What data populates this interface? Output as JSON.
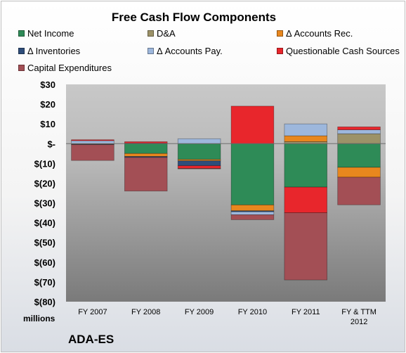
{
  "chart_data": {
    "type": "bar",
    "stacked": true,
    "title": "Free Cash Flow Components",
    "categories": [
      "FY 2007",
      "FY 2008",
      "FY 2009",
      "FY 2010",
      "FY 2011",
      "FY & TTM 2012"
    ],
    "y_tick_labels": [
      "$30",
      "$20",
      "$10",
      "$-",
      "$(10)",
      "$(20)",
      "$(30)",
      "$(40)",
      "$(50)",
      "$(60)",
      "$(70)",
      "$(80)"
    ],
    "ylim": [
      -80,
      30
    ],
    "units_label": "millions",
    "legend_position": "top",
    "grid": false,
    "series": [
      {
        "name": "Net Income",
        "color": "#2e8b57",
        "values": [
          0,
          -5,
          -8,
          -31,
          -22,
          -12
        ]
      },
      {
        "name": "D&A",
        "color": "#9c9268",
        "values": [
          0,
          0,
          0,
          0,
          1,
          5
        ]
      },
      {
        "name": "Δ Accounts Rec.",
        "color": "#e8871e",
        "values": [
          -0.3,
          -1.5,
          -0.7,
          -3,
          3,
          -5
        ]
      },
      {
        "name": "Δ Inventories",
        "color": "#2e4d7a",
        "values": [
          -0.2,
          -0.5,
          -2.5,
          -0.5,
          0,
          0
        ]
      },
      {
        "name": "Δ Accounts Pay.",
        "color": "#9db7dc",
        "values": [
          1.5,
          0.3,
          2.5,
          -1.5,
          6,
          2
        ]
      },
      {
        "name": "Questionable Cash Sources",
        "color": "#e8262c",
        "values": [
          0.5,
          0.7,
          -1.3,
          19,
          -13,
          1.5
        ]
      },
      {
        "name": "Capital Expenditures",
        "color": "#a34f55",
        "values": [
          -8,
          -17,
          -0.3,
          -2.5,
          -34,
          -14
        ]
      }
    ]
  },
  "company": "ADA-ES"
}
